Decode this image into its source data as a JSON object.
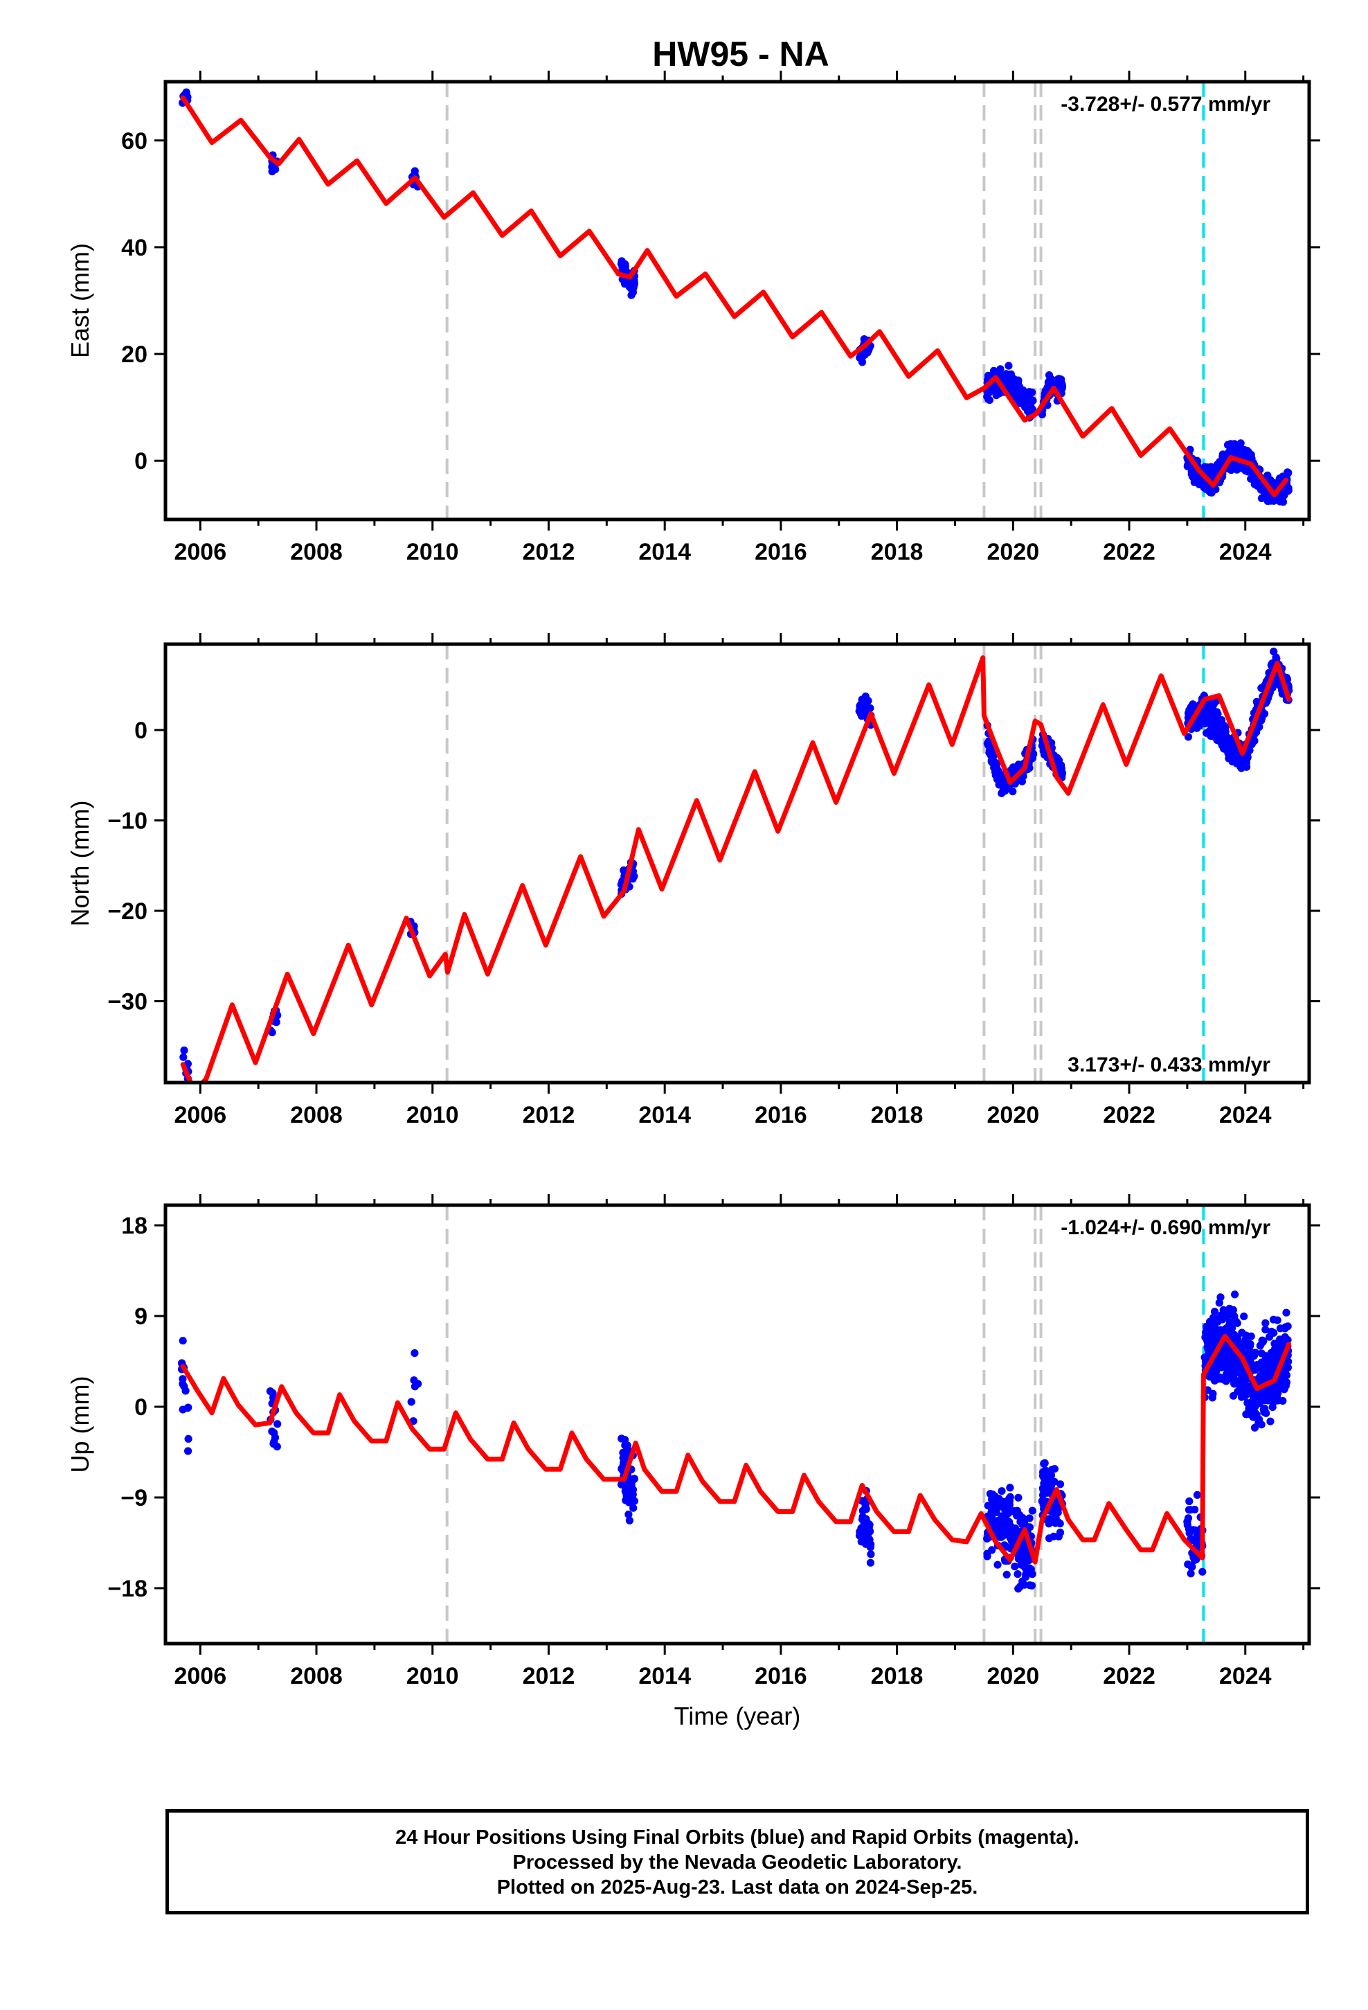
{
  "chart_title": "HW95 - NA",
  "x_axis_label": "Time (year)",
  "footer_lines": [
    "24 Hour Positions Using Final Orbits (blue) and Rapid Orbits (magenta).",
    "Processed by the Nevada Geodetic Laboratory.",
    "Plotted on 2025-Aug-23. Last data on 2024-Sep-25."
  ],
  "colors": {
    "data_points": "#0000ff",
    "model_fit": "#ff0000",
    "equipment_change": "#c8c8c8",
    "earthquake": "#00e5ee"
  },
  "chart_data": [
    {
      "type": "scatter",
      "ylabel": "East (mm)",
      "rate_text": "-3.728+/- 0.577 mm/yr",
      "rate_position": "top-right",
      "xlim": [
        2005.4,
        2025.1
      ],
      "ylim": [
        -11,
        71
      ],
      "x_ticks": [
        2006,
        2008,
        2010,
        2012,
        2014,
        2016,
        2018,
        2020,
        2022,
        2024
      ],
      "x_tick_labels": [
        "2006",
        "2008",
        "2010",
        "2012",
        "2014",
        "2016",
        "2018",
        "2020",
        "2022",
        "2024"
      ],
      "y_ticks": [
        0,
        20,
        40,
        60
      ],
      "y_tick_labels": [
        "0",
        "20",
        "40",
        "60"
      ],
      "equipment_change_lines": [
        2010.25,
        2019.5,
        2020.38,
        2020.48
      ],
      "earthquake_lines": [
        2023.28
      ],
      "model": {
        "x": [
          2005.7,
          2006.2,
          2006.7,
          2007.2,
          2007.35,
          2007.7,
          2008.2,
          2008.7,
          2009.2,
          2009.7,
          2010.2,
          2010.7,
          2011.2,
          2011.7,
          2012.2,
          2012.7,
          2013.2,
          2013.4,
          2013.7,
          2014.2,
          2014.7,
          2015.2,
          2015.7,
          2016.2,
          2016.7,
          2017.2,
          2017.45,
          2017.7,
          2018.2,
          2018.7,
          2019.2,
          2019.5,
          2019.7,
          2020.2,
          2020.4,
          2020.7,
          2021.2,
          2021.7,
          2022.2,
          2022.7,
          2023.2,
          2023.45,
          2023.75,
          2024.1,
          2024.5,
          2024.7
        ],
        "y": [
          68,
          59.6,
          63.8,
          56.8,
          55.6,
          60.2,
          51.8,
          56.2,
          48.2,
          53.0,
          45.6,
          50.2,
          42.2,
          46.8,
          38.4,
          43.0,
          35.0,
          34.4,
          39.4,
          30.8,
          35.0,
          27.0,
          31.6,
          23.2,
          27.8,
          19.6,
          21.6,
          24.2,
          15.8,
          20.6,
          11.8,
          13.6,
          15.6,
          7.6,
          8.8,
          13.6,
          4.6,
          9.8,
          1.0,
          6.0,
          -1.8,
          -4.6,
          0.6,
          -0.6,
          -6.4,
          -3.6
        ]
      },
      "point_clusters": [
        {
          "start": 2005.68,
          "end": 2005.8,
          "count": 12,
          "center": [
            67,
            68,
            69
          ],
          "spread": 1.2
        },
        {
          "start": 2007.2,
          "end": 2007.35,
          "count": 12,
          "center": [
            56,
            55,
            55
          ],
          "spread": 1.5
        },
        {
          "start": 2009.62,
          "end": 2009.76,
          "count": 8,
          "center": [
            53,
            53,
            52
          ],
          "spread": 1.4
        },
        {
          "start": 2013.25,
          "end": 2013.48,
          "count": 40,
          "center": [
            36,
            34,
            33
          ],
          "spread": 2.0
        },
        {
          "start": 2017.35,
          "end": 2017.55,
          "count": 28,
          "center": [
            20,
            21,
            22
          ],
          "spread": 1.6
        },
        {
          "start": 2019.55,
          "end": 2020.35,
          "count": 140,
          "center": [
            14,
            15,
            10
          ],
          "spread": 2.2
        },
        {
          "start": 2020.5,
          "end": 2020.85,
          "count": 70,
          "center": [
            11,
            14,
            14
          ],
          "spread": 2.0
        },
        {
          "start": 2023.0,
          "end": 2024.75,
          "count": 520,
          "center": [
            0,
            -3,
            -4,
            0,
            1,
            -1,
            -5,
            -6,
            -4
          ],
          "spread": 2.0
        }
      ]
    },
    {
      "type": "scatter",
      "ylabel": "North (mm)",
      "rate_text": "3.173+/- 0.433 mm/yr",
      "rate_position": "bottom-right",
      "xlim": [
        2005.4,
        2025.1
      ],
      "ylim": [
        -39,
        9.5
      ],
      "x_ticks": [
        2006,
        2008,
        2010,
        2012,
        2014,
        2016,
        2018,
        2020,
        2022,
        2024
      ],
      "x_tick_labels": [
        "2006",
        "2008",
        "2010",
        "2012",
        "2014",
        "2016",
        "2018",
        "2020",
        "2022",
        "2024"
      ],
      "y_ticks": [
        -30,
        -20,
        -10,
        0
      ],
      "y_tick_labels": [
        "−30",
        "−20",
        "−10",
        "0"
      ],
      "equipment_change_lines": [
        2010.25,
        2019.5,
        2020.38,
        2020.48
      ],
      "earthquake_lines": [
        2023.28
      ],
      "model": {
        "x": [
          2005.7,
          2005.9,
          2006.1,
          2006.55,
          2006.95,
          2007.5,
          2007.95,
          2008.55,
          2008.95,
          2009.55,
          2009.95,
          2010.22,
          2010.26,
          2010.55,
          2010.95,
          2011.55,
          2011.95,
          2012.55,
          2012.95,
          2013.3,
          2013.55,
          2013.95,
          2014.55,
          2014.95,
          2015.55,
          2015.95,
          2016.55,
          2016.95,
          2017.55,
          2017.95,
          2018.55,
          2018.95,
          2019.48,
          2019.5,
          2019.7,
          2019.95,
          2020.2,
          2020.38,
          2020.48,
          2020.75,
          2020.95,
          2021.55,
          2021.95,
          2022.55,
          2022.95,
          2023.3,
          2023.55,
          2023.95,
          2024.55,
          2024.75
        ],
        "y": [
          -37,
          -40,
          -38.6,
          -30.4,
          -36.8,
          -27.0,
          -33.6,
          -23.8,
          -30.4,
          -20.8,
          -27.2,
          -24.8,
          -26.8,
          -20.4,
          -27.0,
          -17.2,
          -23.8,
          -14.0,
          -20.6,
          -17.8,
          -11.0,
          -17.6,
          -7.8,
          -14.4,
          -4.6,
          -11.2,
          -1.4,
          -8.0,
          1.8,
          -4.8,
          5.0,
          -1.6,
          8.0,
          1.6,
          -1.8,
          -5.8,
          -4.2,
          1.0,
          0.6,
          -5.2,
          -7.0,
          2.8,
          -3.8,
          6.0,
          -0.4,
          3.4,
          3.8,
          -2.6,
          7.4,
          3.4
        ]
      },
      "point_clusters": [
        {
          "start": 2005.68,
          "end": 2005.8,
          "count": 10,
          "center": [
            -36,
            -37,
            -38
          ],
          "spread": 1.0
        },
        {
          "start": 2007.2,
          "end": 2007.35,
          "count": 12,
          "center": [
            -33,
            -32,
            -31
          ],
          "spread": 1.0
        },
        {
          "start": 2009.62,
          "end": 2009.76,
          "count": 6,
          "center": [
            -22,
            -22,
            -22
          ],
          "spread": 0.8
        },
        {
          "start": 2013.25,
          "end": 2013.48,
          "count": 40,
          "center": [
            -17,
            -16,
            -15
          ],
          "spread": 1.4
        },
        {
          "start": 2017.35,
          "end": 2017.55,
          "count": 26,
          "center": [
            2,
            3,
            1
          ],
          "spread": 1.4
        },
        {
          "start": 2019.55,
          "end": 2020.35,
          "count": 140,
          "center": [
            -1,
            -6,
            -5,
            -2
          ],
          "spread": 1.3
        },
        {
          "start": 2020.5,
          "end": 2020.85,
          "count": 70,
          "center": [
            -1,
            -3,
            -5
          ],
          "spread": 1.2
        },
        {
          "start": 2023.0,
          "end": 2024.75,
          "count": 520,
          "center": [
            1,
            2,
            1,
            -2,
            -3,
            2,
            7,
            4
          ],
          "spread": 1.4
        }
      ]
    },
    {
      "type": "scatter",
      "ylabel": "Up (mm)",
      "rate_text": "-1.024+/- 0.690 mm/yr",
      "rate_position": "top-right",
      "xlim": [
        2005.4,
        2025.1
      ],
      "ylim": [
        -23.5,
        20
      ],
      "x_ticks": [
        2006,
        2008,
        2010,
        2012,
        2014,
        2016,
        2018,
        2020,
        2022,
        2024
      ],
      "x_tick_labels": [
        "2006",
        "2008",
        "2010",
        "2012",
        "2014",
        "2016",
        "2018",
        "2020",
        "2022",
        "2024"
      ],
      "y_ticks": [
        -18,
        -9,
        0,
        9,
        18
      ],
      "y_tick_labels": [
        "−18",
        "−9",
        "0",
        "9",
        "18"
      ],
      "equipment_change_lines": [
        2010.25,
        2019.5,
        2020.38,
        2020.48
      ],
      "earthquake_lines": [
        2023.28
      ],
      "model": {
        "x": [
          2005.7,
          2005.95,
          2006.2,
          2006.4,
          2006.65,
          2006.95,
          2007.2,
          2007.4,
          2007.65,
          2007.95,
          2008.2,
          2008.4,
          2008.65,
          2008.95,
          2009.2,
          2009.4,
          2009.65,
          2009.95,
          2010.2,
          2010.4,
          2010.65,
          2010.95,
          2011.2,
          2011.4,
          2011.65,
          2011.95,
          2012.2,
          2012.4,
          2012.65,
          2012.95,
          2013.3,
          2013.5,
          2013.65,
          2013.95,
          2014.2,
          2014.4,
          2014.65,
          2014.95,
          2015.2,
          2015.4,
          2015.65,
          2015.95,
          2016.2,
          2016.4,
          2016.65,
          2016.95,
          2017.2,
          2017.4,
          2017.65,
          2017.95,
          2018.2,
          2018.4,
          2018.65,
          2018.95,
          2019.2,
          2019.45,
          2019.7,
          2019.95,
          2020.2,
          2020.38,
          2020.5,
          2020.75,
          2020.95,
          2021.2,
          2021.4,
          2021.65,
          2021.95,
          2022.2,
          2022.4,
          2022.65,
          2022.95,
          2023.26,
          2023.28,
          2023.65,
          2023.95,
          2024.2,
          2024.5,
          2024.75
        ],
        "y": [
          4,
          1.6,
          -0.6,
          2.8,
          0.2,
          -1.8,
          -1.6,
          2.0,
          -0.6,
          -2.6,
          -2.6,
          1.2,
          -1.4,
          -3.4,
          -3.4,
          0.4,
          -2.2,
          -4.2,
          -4.2,
          -0.6,
          -3.2,
          -5.2,
          -5.2,
          -1.6,
          -4.2,
          -6.2,
          -6.2,
          -2.6,
          -5.2,
          -7.2,
          -7.2,
          -3.6,
          -6.2,
          -8.4,
          -8.4,
          -4.8,
          -7.4,
          -9.4,
          -9.4,
          -5.8,
          -8.4,
          -10.4,
          -10.4,
          -6.8,
          -9.4,
          -11.4,
          -11.4,
          -7.8,
          -10.4,
          -12.4,
          -12.4,
          -8.8,
          -11.2,
          -13.2,
          -13.4,
          -10.6,
          -13.4,
          -15.2,
          -12.2,
          -15.4,
          -11.2,
          -8.2,
          -11.2,
          -13.2,
          -13.2,
          -9.6,
          -12.2,
          -14.2,
          -14.2,
          -10.6,
          -13.2,
          -15.0,
          3.2,
          7.0,
          4.8,
          1.8,
          2.6,
          6.2
        ]
      },
      "point_clusters": [
        {
          "start": 2005.68,
          "end": 2005.8,
          "count": 14,
          "center": [
            4,
            2,
            0
          ],
          "spread": 3.5
        },
        {
          "start": 2007.2,
          "end": 2007.35,
          "count": 14,
          "center": [
            0,
            -2,
            -3
          ],
          "spread": 3.2
        },
        {
          "start": 2009.62,
          "end": 2009.76,
          "count": 6,
          "center": [
            3,
            2,
            1
          ],
          "spread": 3.0
        },
        {
          "start": 2013.25,
          "end": 2013.48,
          "count": 60,
          "center": [
            -5,
            -7,
            -8
          ],
          "spread": 3.2
        },
        {
          "start": 2017.35,
          "end": 2017.55,
          "count": 36,
          "center": [
            -12,
            -11,
            -13
          ],
          "spread": 2.8
        },
        {
          "start": 2019.55,
          "end": 2020.35,
          "count": 180,
          "center": [
            -11,
            -12,
            -13,
            -15
          ],
          "spread": 3.6
        },
        {
          "start": 2020.5,
          "end": 2020.85,
          "count": 80,
          "center": [
            -8,
            -9,
            -10
          ],
          "spread": 3.0
        },
        {
          "start": 2023.0,
          "end": 2023.27,
          "count": 40,
          "center": [
            -13,
            -13,
            -14
          ],
          "spread": 3.0
        },
        {
          "start": 2023.3,
          "end": 2024.75,
          "count": 560,
          "center": [
            5,
            6,
            5,
            2,
            3,
            6
          ],
          "spread": 3.6
        }
      ]
    }
  ]
}
